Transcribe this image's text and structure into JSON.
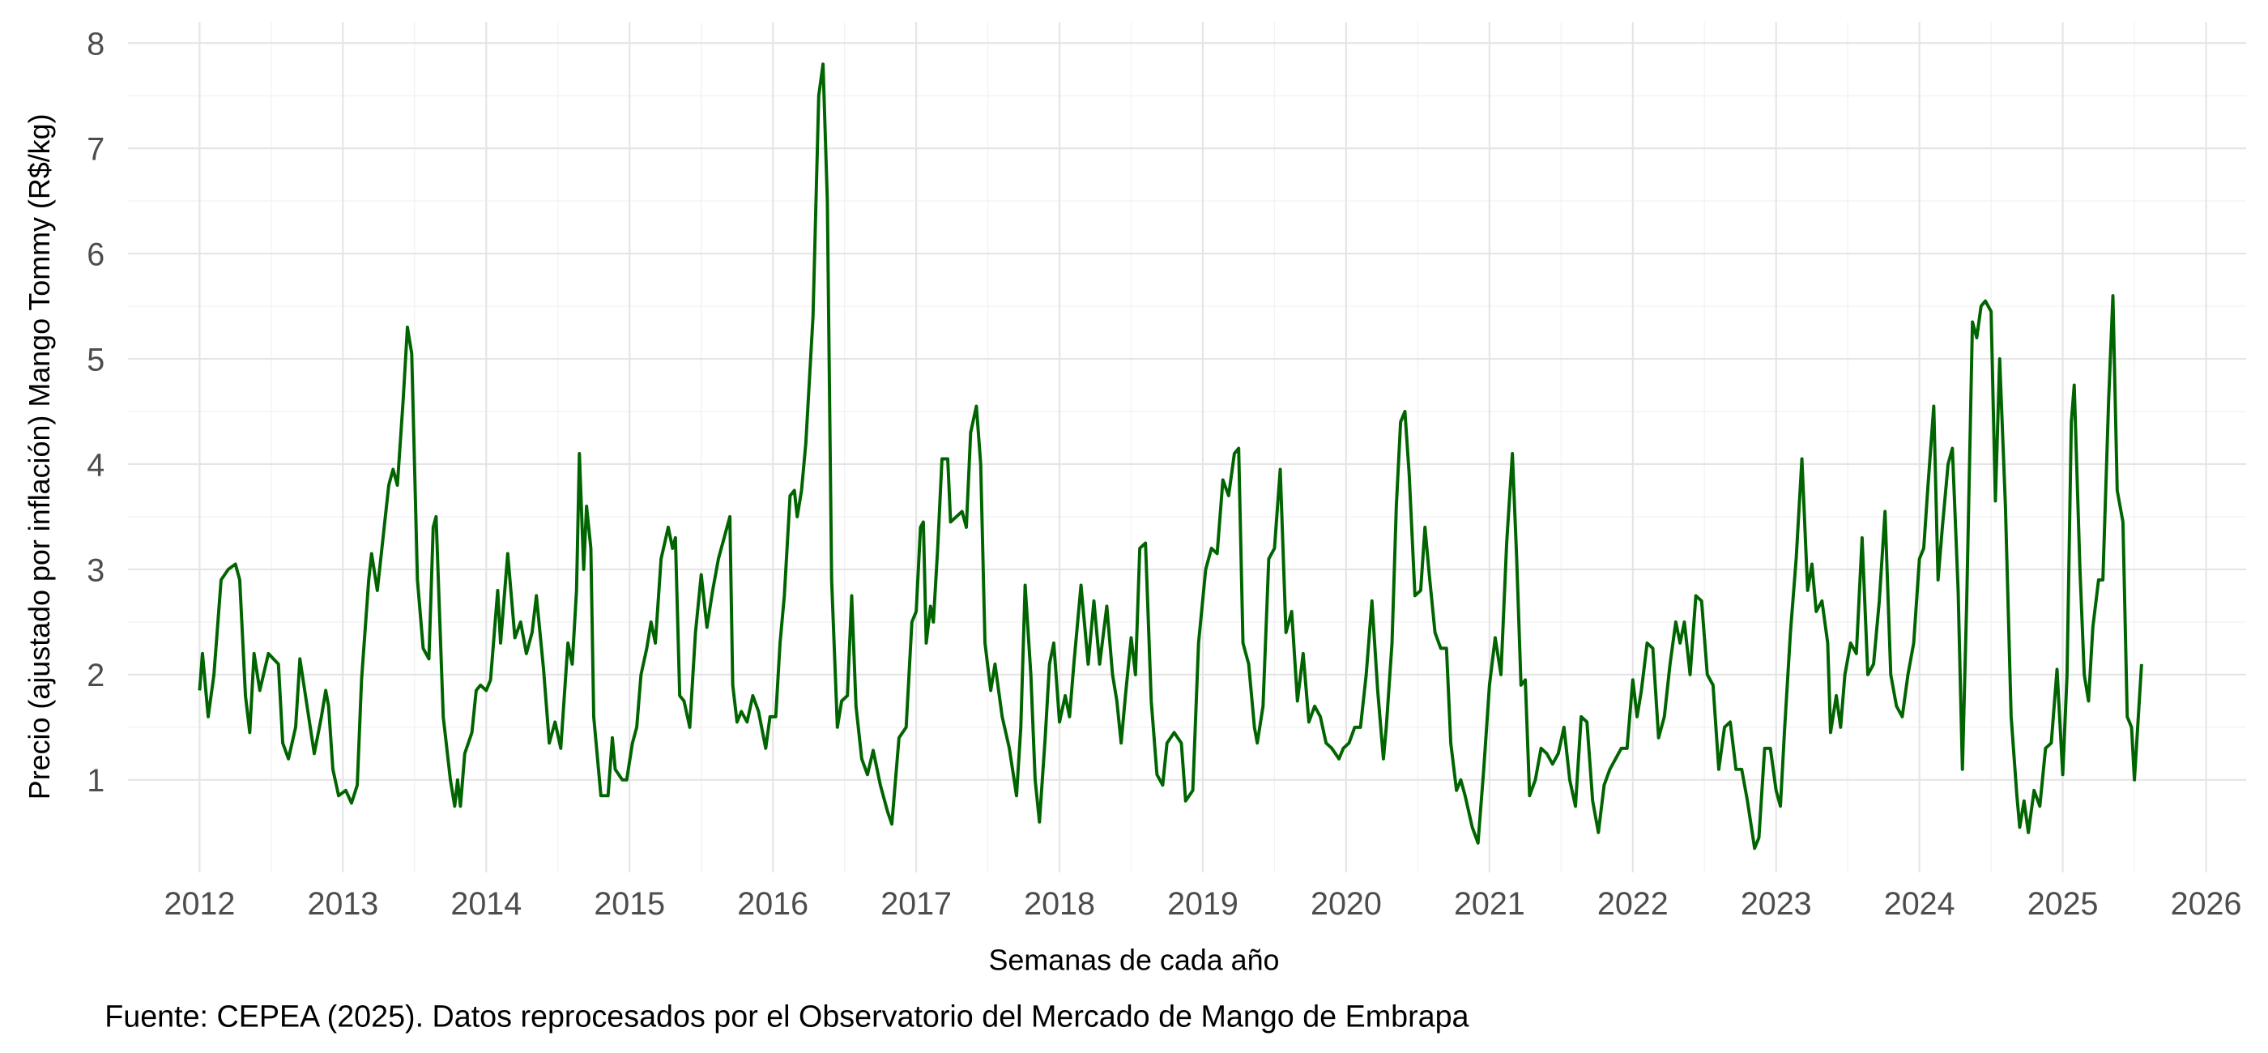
{
  "chart_data": {
    "type": "line",
    "y_label": "Precio (ajustado por inflación) Mango Tommy (R$/kg)",
    "x_label": "Semanas de cada año",
    "caption": "Fuente: CEPEA (2025). Datos reprocesados por el Observatorio del Mercado de Mango de Embrapa",
    "color": "#006400",
    "grid": true,
    "xlim": [
      2011.5,
      2026.28
    ],
    "ylim": [
      0.12,
      8.2
    ],
    "xticks": [
      2012,
      2013,
      2014,
      2015,
      2016,
      2017,
      2018,
      2019,
      2020,
      2021,
      2022,
      2023,
      2024,
      2025,
      2026
    ],
    "yticks": [
      1,
      2,
      3,
      4,
      5,
      6,
      7,
      8
    ],
    "x": [
      2012.0,
      2012.02,
      2012.06,
      2012.1,
      2012.15,
      2012.2,
      2012.25,
      2012.28,
      2012.32,
      2012.35,
      2012.38,
      2012.42,
      2012.48,
      2012.55,
      2012.58,
      2012.62,
      2012.67,
      2012.7,
      2012.75,
      2012.8,
      2012.85,
      2012.88,
      2012.9,
      2012.93,
      2012.97,
      2013.02,
      2013.06,
      2013.1,
      2013.13,
      2013.18,
      2013.2,
      2013.24,
      2013.28,
      2013.32,
      2013.35,
      2013.38,
      2013.42,
      2013.45,
      2013.48,
      2013.52,
      2013.56,
      2013.6,
      2013.63,
      2013.65,
      2013.7,
      2013.75,
      2013.78,
      2013.8,
      2013.82,
      2013.85,
      2013.9,
      2013.93,
      2013.96,
      2014.0,
      2014.03,
      2014.08,
      2014.1,
      2014.15,
      2014.2,
      2014.24,
      2014.28,
      2014.32,
      2014.35,
      2014.4,
      2014.44,
      2014.48,
      2014.52,
      2014.57,
      2014.6,
      2014.63,
      2014.65,
      2014.68,
      2014.7,
      2014.73,
      2014.75,
      2014.8,
      2014.85,
      2014.88,
      2014.9,
      2014.95,
      2014.98,
      2015.02,
      2015.05,
      2015.08,
      2015.12,
      2015.15,
      2015.18,
      2015.22,
      2015.27,
      2015.3,
      2015.32,
      2015.35,
      2015.38,
      2015.42,
      2015.46,
      2015.5,
      2015.54,
      2015.58,
      2015.62,
      2015.66,
      2015.7,
      2015.72,
      2015.75,
      2015.78,
      2015.82,
      2015.86,
      2015.9,
      2015.95,
      2015.98,
      2016.02,
      2016.05,
      2016.08,
      2016.12,
      2016.15,
      2016.17,
      2016.2,
      2016.23,
      2016.28,
      2016.32,
      2016.35,
      2016.38,
      2016.41,
      2016.45,
      2016.48,
      2016.52,
      2016.55,
      2016.58,
      2016.62,
      2016.66,
      2016.7,
      2016.75,
      2016.8,
      2016.83,
      2016.88,
      2016.93,
      2016.97,
      2017.0,
      2017.03,
      2017.05,
      2017.07,
      2017.1,
      2017.12,
      2017.15,
      2017.18,
      2017.22,
      2017.24,
      2017.28,
      2017.32,
      2017.35,
      2017.38,
      2017.42,
      2017.45,
      2017.48,
      2017.52,
      2017.55,
      2017.6,
      2017.65,
      2017.7,
      2017.73,
      2017.76,
      2017.8,
      2017.83,
      2017.86,
      2017.9,
      2017.93,
      2017.96,
      2018.0,
      2018.04,
      2018.07,
      2018.1,
      2018.15,
      2018.2,
      2018.24,
      2018.28,
      2018.33,
      2018.37,
      2018.4,
      2018.43,
      2018.46,
      2018.5,
      2018.53,
      2018.56,
      2018.6,
      2018.64,
      2018.68,
      2018.72,
      2018.75,
      2018.8,
      2018.85,
      2018.88,
      2018.93,
      2018.97,
      2019.02,
      2019.06,
      2019.1,
      2019.14,
      2019.18,
      2019.22,
      2019.25,
      2019.28,
      2019.32,
      2019.36,
      2019.38,
      2019.42,
      2019.46,
      2019.5,
      2019.54,
      2019.58,
      2019.62,
      2019.66,
      2019.7,
      2019.74,
      2019.78,
      2019.82,
      2019.86,
      2019.9,
      2019.95,
      2019.98,
      2020.02,
      2020.06,
      2020.1,
      2020.14,
      2020.18,
      2020.22,
      2020.26,
      2020.28,
      2020.32,
      2020.35,
      2020.38,
      2020.41,
      2020.44,
      2020.48,
      2020.52,
      2020.55,
      2020.58,
      2020.62,
      2020.66,
      2020.7,
      2020.73,
      2020.77,
      2020.8,
      2020.83,
      2020.88,
      2020.92,
      2020.96,
      2021.0,
      2021.04,
      2021.08,
      2021.12,
      2021.16,
      2021.19,
      2021.22,
      2021.25,
      2021.28,
      2021.32,
      2021.36,
      2021.4,
      2021.44,
      2021.48,
      2021.52,
      2021.56,
      2021.6,
      2021.64,
      2021.68,
      2021.72,
      2021.76,
      2021.8,
      2021.84,
      2021.88,
      2021.92,
      2021.96,
      2022.0,
      2022.03,
      2022.06,
      2022.1,
      2022.14,
      2022.18,
      2022.22,
      2022.26,
      2022.3,
      2022.33,
      2022.36,
      2022.4,
      2022.44,
      2022.48,
      2022.52,
      2022.56,
      2022.6,
      2022.64,
      2022.68,
      2022.72,
      2022.76,
      2022.8,
      2022.85,
      2022.88,
      2022.92,
      2022.96,
      2023.0,
      2023.03,
      2023.06,
      2023.1,
      2023.14,
      2023.18,
      2023.22,
      2023.25,
      2023.28,
      2023.32,
      2023.36,
      2023.38,
      2023.42,
      2023.45,
      2023.48,
      2023.52,
      2023.56,
      2023.6,
      2023.64,
      2023.68,
      2023.72,
      2023.76,
      2023.8,
      2023.84,
      2023.88,
      2023.92,
      2023.96,
      2024.0,
      2024.03,
      2024.06,
      2024.1,
      2024.13,
      2024.16,
      2024.2,
      2024.23,
      2024.27,
      2024.3,
      2024.33,
      2024.37,
      2024.4,
      2024.43,
      2024.46,
      2024.5,
      2024.53,
      2024.56,
      2024.6,
      2024.64,
      2024.68,
      2024.7,
      2024.73,
      2024.76,
      2024.8,
      2024.84,
      2024.88,
      2024.92,
      2024.96,
      2025.0,
      2025.03,
      2025.06,
      2025.08,
      2025.12,
      2025.15,
      2025.18,
      2025.21,
      2025.25,
      2025.28,
      2025.32,
      2025.35,
      2025.38,
      2025.42,
      2025.45,
      2025.48,
      2025.5,
      2025.55
    ],
    "values": [
      1.85,
      2.2,
      1.6,
      2.0,
      2.9,
      3.0,
      3.05,
      2.9,
      1.8,
      1.45,
      2.2,
      1.85,
      2.2,
      2.1,
      1.35,
      1.2,
      1.5,
      2.15,
      1.7,
      1.25,
      1.6,
      1.85,
      1.7,
      1.1,
      0.85,
      0.9,
      0.78,
      0.95,
      1.95,
      2.9,
      3.15,
      2.8,
      3.3,
      3.8,
      3.95,
      3.8,
      4.6,
      5.3,
      5.05,
      2.9,
      2.25,
      2.15,
      3.4,
      3.5,
      1.6,
      1.0,
      0.75,
      1.0,
      0.75,
      1.25,
      1.45,
      1.85,
      1.9,
      1.85,
      1.95,
      2.8,
      2.3,
      3.15,
      2.35,
      2.5,
      2.2,
      2.4,
      2.75,
      2.05,
      1.35,
      1.55,
      1.3,
      2.3,
      2.1,
      2.8,
      4.1,
      3.0,
      3.6,
      3.2,
      1.6,
      0.85,
      0.85,
      1.4,
      1.1,
      1.0,
      1.0,
      1.35,
      1.5,
      2.0,
      2.25,
      2.5,
      2.3,
      3.1,
      3.4,
      3.2,
      3.3,
      1.8,
      1.75,
      1.5,
      2.4,
      2.95,
      2.45,
      2.8,
      3.1,
      3.3,
      3.5,
      1.9,
      1.55,
      1.65,
      1.55,
      1.8,
      1.65,
      1.3,
      1.6,
      1.6,
      2.3,
      2.75,
      3.7,
      3.75,
      3.5,
      3.75,
      4.2,
      5.4,
      7.5,
      7.8,
      6.5,
      2.9,
      1.5,
      1.75,
      1.8,
      2.75,
      1.7,
      1.2,
      1.05,
      1.28,
      0.95,
      0.7,
      0.58,
      1.4,
      1.5,
      2.5,
      2.6,
      3.4,
      3.45,
      2.3,
      2.65,
      2.5,
      3.2,
      4.05,
      4.05,
      3.45,
      3.5,
      3.55,
      3.4,
      4.3,
      4.55,
      4.0,
      2.3,
      1.85,
      2.1,
      1.6,
      1.3,
      0.85,
      1.5,
      2.85,
      2.0,
      1.0,
      0.6,
      1.4,
      2.1,
      2.3,
      1.55,
      1.8,
      1.6,
      2.1,
      2.85,
      2.1,
      2.7,
      2.1,
      2.65,
      2.0,
      1.75,
      1.35,
      1.8,
      2.35,
      2.0,
      3.2,
      3.25,
      1.75,
      1.05,
      0.95,
      1.35,
      1.45,
      1.35,
      0.8,
      0.9,
      2.3,
      3.0,
      3.2,
      3.15,
      3.85,
      3.7,
      4.1,
      4.15,
      2.3,
      2.1,
      1.5,
      1.35,
      1.7,
      3.1,
      3.2,
      3.95,
      2.4,
      2.6,
      1.75,
      2.2,
      1.55,
      1.7,
      1.6,
      1.35,
      1.3,
      1.2,
      1.3,
      1.35,
      1.5,
      1.5,
      2.0,
      2.7,
      1.85,
      1.2,
      1.5,
      2.3,
      3.6,
      4.4,
      4.5,
      3.9,
      2.75,
      2.8,
      3.4,
      2.95,
      2.4,
      2.25,
      2.25,
      1.35,
      0.9,
      1.0,
      0.85,
      0.55,
      0.4,
      1.1,
      1.9,
      2.35,
      2.0,
      3.25,
      4.1,
      3.1,
      1.9,
      1.95,
      0.85,
      1.0,
      1.3,
      1.25,
      1.15,
      1.25,
      1.5,
      1.0,
      0.75,
      1.6,
      1.55,
      0.8,
      0.5,
      0.95,
      1.1,
      1.2,
      1.3,
      1.3,
      1.95,
      1.6,
      1.85,
      2.3,
      2.25,
      1.4,
      1.6,
      2.1,
      2.5,
      2.3,
      2.5,
      2.0,
      2.75,
      2.7,
      2.0,
      1.9,
      1.1,
      1.5,
      1.55,
      1.1,
      1.1,
      0.8,
      0.35,
      0.45,
      1.3,
      1.3,
      0.9,
      0.75,
      1.5,
      2.4,
      3.1,
      4.05,
      2.8,
      3.05,
      2.6,
      2.7,
      2.3,
      1.45,
      1.8,
      1.5,
      2.0,
      2.3,
      2.2,
      3.3,
      2.0,
      2.1,
      2.7,
      3.55,
      2.0,
      1.7,
      1.6,
      2.0,
      2.3,
      3.1,
      3.2,
      3.8,
      4.55,
      2.9,
      3.4,
      4.0,
      4.15,
      2.8,
      1.1,
      2.7,
      5.35,
      5.2,
      5.5,
      5.55,
      5.45,
      3.65,
      5.0,
      3.6,
      1.6,
      0.85,
      0.55,
      0.8,
      0.5,
      0.9,
      0.75,
      1.3,
      1.35,
      2.05,
      1.05,
      2.0,
      4.4,
      4.75,
      3.0,
      2.0,
      1.75,
      2.45,
      2.9,
      2.9,
      4.6,
      5.6,
      3.75,
      3.45,
      1.6,
      1.5,
      1.0,
      2.1
    ]
  }
}
